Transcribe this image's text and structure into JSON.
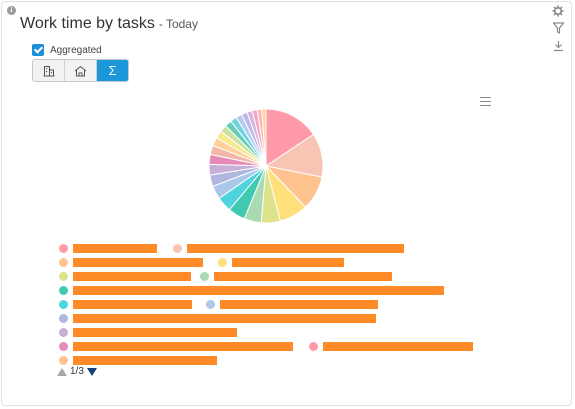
{
  "header": {
    "title": "Work time by tasks",
    "subtitle": "- Today"
  },
  "toolbar_icons": [
    "settings-icon",
    "filter-icon",
    "download-icon"
  ],
  "options": {
    "aggregated_label": "Aggregated",
    "aggregated_checked": true
  },
  "segmented": {
    "buttons": [
      {
        "icon": "building-icon",
        "active": false
      },
      {
        "icon": "house-icon",
        "active": false
      },
      {
        "icon": "sigma-icon",
        "label": "Σ",
        "active": true
      }
    ]
  },
  "chart_data": {
    "type": "pie",
    "slices": [
      {
        "value": 14.5,
        "color": "#ff9aa8"
      },
      {
        "value": 11.5,
        "color": "#f8c4b4"
      },
      {
        "value": 9.0,
        "color": "#ffc390"
      },
      {
        "value": 7.5,
        "color": "#ffdf7a"
      },
      {
        "value": 5.0,
        "color": "#dde38a"
      },
      {
        "value": 4.5,
        "color": "#a8dbb1"
      },
      {
        "value": 4.5,
        "color": "#3ec9b0"
      },
      {
        "value": 4.0,
        "color": "#4dd4dc"
      },
      {
        "value": 3.5,
        "color": "#a9c8ea"
      },
      {
        "value": 3.0,
        "color": "#b0b6e0"
      },
      {
        "value": 2.8,
        "color": "#c9aed8"
      },
      {
        "value": 2.6,
        "color": "#e68ab6"
      },
      {
        "value": 2.4,
        "color": "#f4b8a8"
      },
      {
        "value": 2.2,
        "color": "#ffd199"
      },
      {
        "value": 2.0,
        "color": "#f7e88f"
      },
      {
        "value": 1.9,
        "color": "#c8e3a0"
      },
      {
        "value": 1.8,
        "color": "#66cdb6"
      },
      {
        "value": 1.7,
        "color": "#72d3e0"
      },
      {
        "value": 1.6,
        "color": "#b3cdee"
      },
      {
        "value": 1.5,
        "color": "#bdb8e8"
      },
      {
        "value": 1.4,
        "color": "#d7b6dd"
      },
      {
        "value": 1.3,
        "color": "#f0a5c6"
      },
      {
        "value": 1.2,
        "color": "#ffb6b0"
      },
      {
        "value": 1.1,
        "color": "#ffd0a6"
      }
    ]
  },
  "legend": {
    "items": [
      {
        "color": "#ff9aa8"
      },
      {
        "color": "#f8c4b4"
      },
      {
        "color": "#ffc390"
      },
      {
        "color": "#ffdf7a"
      },
      {
        "color": "#dde38a"
      },
      {
        "color": "#a8dbb1"
      },
      {
        "color": "#3ec9b0"
      },
      {
        "color": "#4dd4dc"
      },
      {
        "color": "#a9c8ea"
      },
      {
        "color": "#b0b6e0"
      },
      {
        "color": "#c9aed8"
      },
      {
        "color": "#e68ab6"
      },
      {
        "color": "#ff9aa8"
      },
      {
        "color": "#ffc390"
      }
    ]
  },
  "pager": {
    "label": "1/3"
  }
}
